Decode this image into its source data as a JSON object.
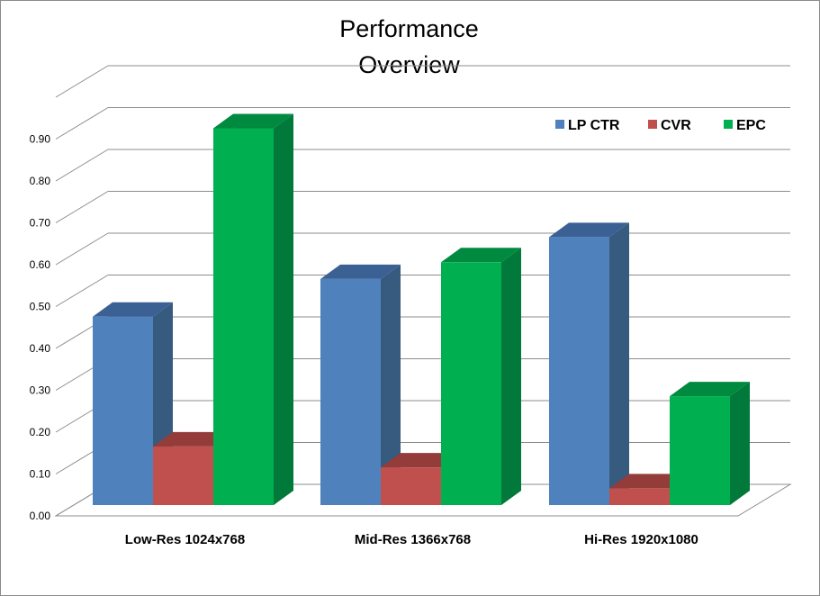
{
  "chart_data": {
    "type": "bar",
    "title": "Performance\nOverview",
    "categories": [
      "Low-Res 1024x768",
      "Mid-Res 1366x768",
      "Hi-Res 1920x1080"
    ],
    "series": [
      {
        "name": "LP CTR",
        "values": [
          0.45,
          0.54,
          0.64
        ],
        "color": "#4f81bd",
        "side_color": "#375a7f",
        "top_color": "#3b6194"
      },
      {
        "name": "CVR",
        "values": [
          0.14,
          0.09,
          0.04
        ],
        "color": "#c0504d",
        "side_color": "#8c3836",
        "top_color": "#943c39"
      },
      {
        "name": "EPC",
        "values": [
          0.9,
          0.58,
          0.26
        ],
        "color": "#00b050",
        "side_color": "#00793a",
        "top_color": "#008a3f"
      }
    ],
    "ylim": [
      0,
      0.9
    ],
    "yticks": [
      "0.00",
      "0.10",
      "0.20",
      "0.30",
      "0.40",
      "0.50",
      "0.60",
      "0.70",
      "0.80",
      "0.90"
    ],
    "xlabel": "",
    "ylabel": "",
    "grid": true,
    "legend_position": "top-right",
    "style": "3d-column"
  }
}
